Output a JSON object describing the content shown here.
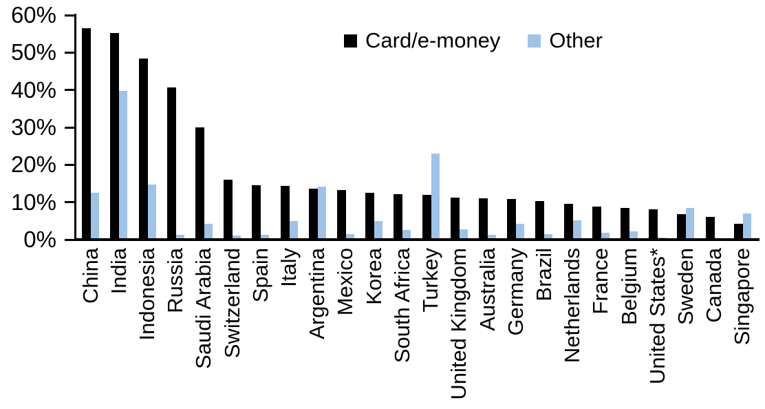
{
  "chart_data": {
    "type": "bar",
    "title": "",
    "xlabel": "",
    "ylabel": "",
    "ylim": [
      0,
      60
    ],
    "y_ticks": [
      "0%",
      "10%",
      "20%",
      "30%",
      "40%",
      "50%",
      "60%"
    ],
    "grid": false,
    "legend_position": "top-center",
    "categories": [
      "China",
      "India",
      "Indonesia",
      "Russia",
      "Saudi Arabia",
      "Switzerland",
      "Spain",
      "Italy",
      "Argentina",
      "Mexico",
      "Korea",
      "South Africa",
      "Turkey",
      "United Kingdom",
      "Australia",
      "Germany",
      "Brazil",
      "Netherlands",
      "France",
      "Belgium",
      "United States*",
      "Sweden",
      "Canada",
      "Singapore"
    ],
    "series": [
      {
        "name": "Card/e-money",
        "color": "#000000",
        "values": [
          56.4,
          55.2,
          48.3,
          40.6,
          29.9,
          15.7,
          14.2,
          14.0,
          13.4,
          12.9,
          12.2,
          11.8,
          11.7,
          11.0,
          10.7,
          10.6,
          10.0,
          9.2,
          8.6,
          8.1,
          7.8,
          6.4,
          5.8,
          3.8
        ]
      },
      {
        "name": "Other",
        "color": "#9DC3E6",
        "values": [
          12.2,
          39.7,
          14.5,
          1.0,
          3.9,
          0.7,
          0.9,
          4.6,
          13.8,
          1.2,
          4.6,
          2.3,
          22.7,
          2.4,
          1.0,
          3.9,
          1.2,
          4.8,
          1.4,
          1.9,
          0.2,
          8.1,
          0.0,
          6.6
        ]
      }
    ],
    "colors": {
      "axis": "#000000",
      "background": "#FFFFFF"
    }
  }
}
